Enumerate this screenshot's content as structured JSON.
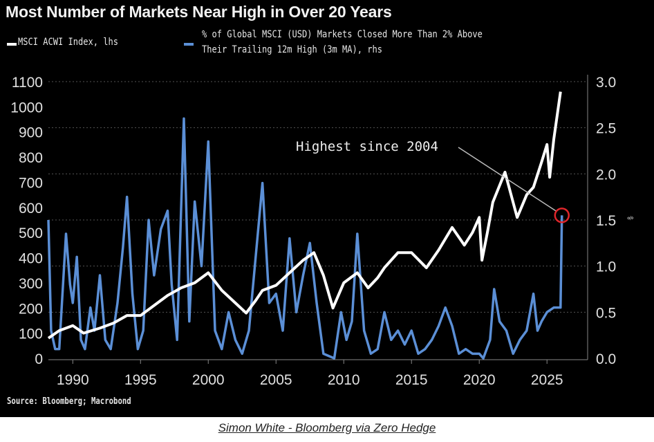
{
  "chart_data": {
    "type": "line",
    "title": "Most Number of Markets Near High in Over 20 Years",
    "source": "Source: Bloomberg; Macrobond",
    "caption": "Simon White - Bloomberg via Zero Hedge",
    "xlim": [
      1988.2,
      2028
    ],
    "x_ticks": [
      "1990",
      "1995",
      "2000",
      "2005",
      "2010",
      "2015",
      "2020",
      "2025"
    ],
    "left_axis": {
      "ylim": [
        0,
        1100
      ],
      "ticks": [
        "0",
        "100",
        "200",
        "300",
        "400",
        "500",
        "600",
        "700",
        "800",
        "900",
        "1000",
        "1100"
      ]
    },
    "right_axis": {
      "ylim": [
        0,
        3.0
      ],
      "ticks": [
        "0.0",
        "0.5",
        "1.0",
        "1.5",
        "2.0",
        "2.5",
        "3.0"
      ],
      "unit_label": "%"
    },
    "grid": true,
    "legend_position": "top-left",
    "annotation": {
      "text": "Highest since 2004",
      "x": 2026.1,
      "y": 1.55,
      "axis": "rhs"
    },
    "colors": {
      "msci": "#ffffff",
      "pct": "#5b8fd6",
      "marker": "#e0262b",
      "bg": "#000000"
    },
    "series": [
      {
        "name": "MSCI ACWI Index, lhs",
        "axis": "left",
        "points": [
          [
            1988.2,
            80
          ],
          [
            1989,
            110
          ],
          [
            1990,
            130
          ],
          [
            1990.8,
            100
          ],
          [
            1992,
            120
          ],
          [
            1993,
            140
          ],
          [
            1994,
            170
          ],
          [
            1995,
            170
          ],
          [
            1996,
            210
          ],
          [
            1997,
            250
          ],
          [
            1998,
            280
          ],
          [
            1999,
            300
          ],
          [
            2000,
            340
          ],
          [
            2001,
            270
          ],
          [
            2002,
            220
          ],
          [
            2002.8,
            180
          ],
          [
            2003.5,
            230
          ],
          [
            2004,
            270
          ],
          [
            2005,
            290
          ],
          [
            2006,
            340
          ],
          [
            2007,
            390
          ],
          [
            2007.8,
            420
          ],
          [
            2008.5,
            330
          ],
          [
            2009.2,
            200
          ],
          [
            2010,
            300
          ],
          [
            2011,
            340
          ],
          [
            2011.8,
            280
          ],
          [
            2012.5,
            320
          ],
          [
            2013,
            360
          ],
          [
            2014,
            420
          ],
          [
            2015,
            420
          ],
          [
            2016.1,
            360
          ],
          [
            2017,
            430
          ],
          [
            2018,
            520
          ],
          [
            2018.9,
            450
          ],
          [
            2019.5,
            500
          ],
          [
            2020,
            560
          ],
          [
            2020.2,
            390
          ],
          [
            2020.6,
            500
          ],
          [
            2021,
            620
          ],
          [
            2021.9,
            740
          ],
          [
            2022.8,
            560
          ],
          [
            2023.5,
            650
          ],
          [
            2024,
            680
          ],
          [
            2024.6,
            780
          ],
          [
            2025,
            850
          ],
          [
            2025.2,
            720
          ],
          [
            2025.5,
            870
          ],
          [
            2026,
            1060
          ]
        ]
      },
      {
        "name": "% of Global MSCI (USD) Markets Closed More Than 2% Above Their Trailing 12m High (3m MA), rhs",
        "axis": "right",
        "points": [
          [
            1988.2,
            1.5
          ],
          [
            1988.4,
            0.3
          ],
          [
            1988.7,
            0.1
          ],
          [
            1989,
            0.1
          ],
          [
            1989.5,
            1.35
          ],
          [
            1989.8,
            0.8
          ],
          [
            1990,
            0.6
          ],
          [
            1990.3,
            1.1
          ],
          [
            1990.6,
            0.2
          ],
          [
            1990.9,
            0.1
          ],
          [
            1991.3,
            0.55
          ],
          [
            1991.6,
            0.3
          ],
          [
            1992,
            0.9
          ],
          [
            1992.4,
            0.2
          ],
          [
            1992.8,
            0.1
          ],
          [
            1993.3,
            0.6
          ],
          [
            1993.7,
            1.2
          ],
          [
            1994,
            1.75
          ],
          [
            1994.4,
            0.7
          ],
          [
            1994.8,
            0.1
          ],
          [
            1995.2,
            0.3
          ],
          [
            1995.6,
            1.5
          ],
          [
            1996,
            0.9
          ],
          [
            1996.5,
            1.4
          ],
          [
            1997,
            1.6
          ],
          [
            1997.3,
            0.8
          ],
          [
            1997.7,
            0.2
          ],
          [
            1998.2,
            2.6
          ],
          [
            1998.6,
            0.4
          ],
          [
            1999,
            1.7
          ],
          [
            1999.5,
            1.0
          ],
          [
            2000,
            2.35
          ],
          [
            2000.5,
            0.3
          ],
          [
            2001,
            0.1
          ],
          [
            2001.5,
            0.5
          ],
          [
            2002,
            0.2
          ],
          [
            2002.5,
            0.05
          ],
          [
            2003,
            0.3
          ],
          [
            2003.5,
            1.1
          ],
          [
            2004,
            1.9
          ],
          [
            2004.5,
            0.6
          ],
          [
            2005,
            0.7
          ],
          [
            2005.5,
            0.3
          ],
          [
            2006,
            1.3
          ],
          [
            2006.5,
            0.5
          ],
          [
            2007,
            0.9
          ],
          [
            2007.5,
            1.25
          ],
          [
            2008,
            0.6
          ],
          [
            2008.5,
            0.05
          ],
          [
            2009.3,
            0.0
          ],
          [
            2009.8,
            0.5
          ],
          [
            2010.2,
            0.2
          ],
          [
            2010.6,
            0.4
          ],
          [
            2011,
            1.35
          ],
          [
            2011.5,
            0.3
          ],
          [
            2012,
            0.05
          ],
          [
            2012.5,
            0.1
          ],
          [
            2013,
            0.5
          ],
          [
            2013.5,
            0.2
          ],
          [
            2014,
            0.3
          ],
          [
            2014.5,
            0.15
          ],
          [
            2015,
            0.3
          ],
          [
            2015.5,
            0.05
          ],
          [
            2016,
            0.1
          ],
          [
            2016.5,
            0.2
          ],
          [
            2017,
            0.35
          ],
          [
            2017.5,
            0.55
          ],
          [
            2018,
            0.35
          ],
          [
            2018.5,
            0.05
          ],
          [
            2019,
            0.1
          ],
          [
            2019.5,
            0.05
          ],
          [
            2020,
            0.05
          ],
          [
            2020.3,
            0.0
          ],
          [
            2020.8,
            0.2
          ],
          [
            2021.1,
            0.75
          ],
          [
            2021.5,
            0.4
          ],
          [
            2022,
            0.3
          ],
          [
            2022.5,
            0.05
          ],
          [
            2023,
            0.2
          ],
          [
            2023.5,
            0.3
          ],
          [
            2024,
            0.7
          ],
          [
            2024.3,
            0.3
          ],
          [
            2024.6,
            0.4
          ],
          [
            2025,
            0.5
          ],
          [
            2025.5,
            0.55
          ],
          [
            2026,
            0.55
          ],
          [
            2026.1,
            1.55
          ]
        ]
      }
    ],
    "legend": {
      "msci": "MSCI ACWI Index, lhs",
      "pct_line1": "% of Global MSCI (USD) Markets Closed More Than 2% Above",
      "pct_line2": "Their Trailing 12m High (3m MA), rhs"
    }
  }
}
